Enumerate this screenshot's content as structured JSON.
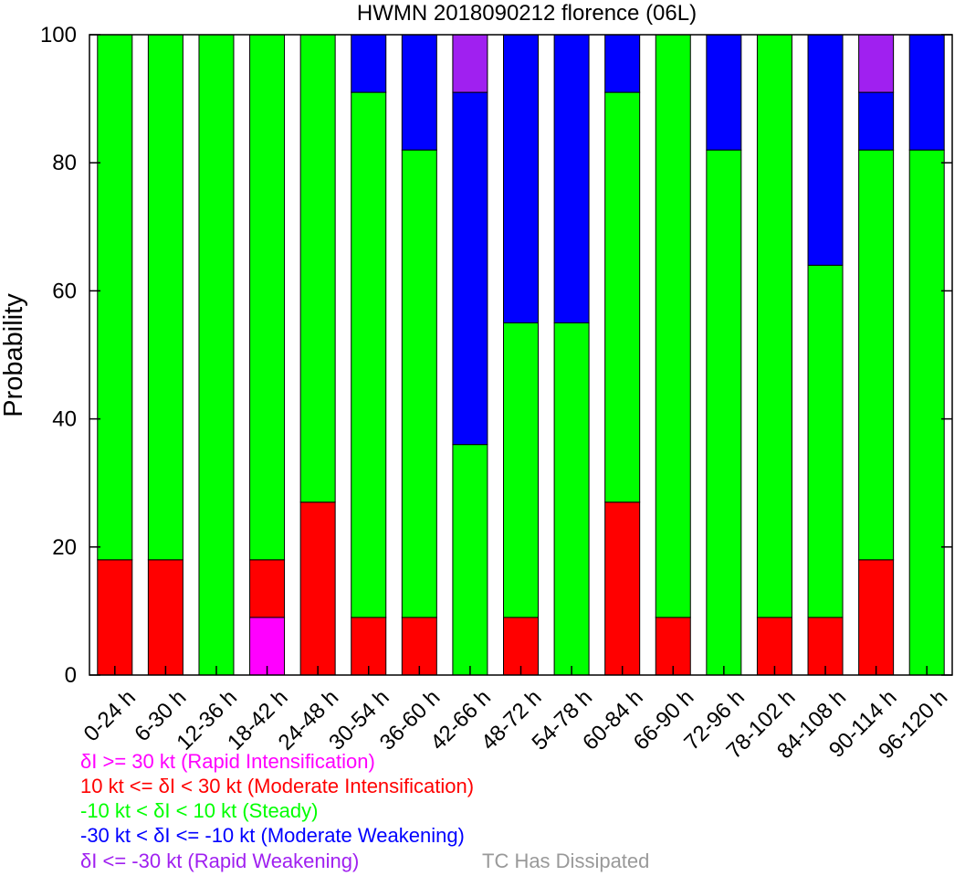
{
  "chart_data": {
    "type": "bar",
    "stacked": true,
    "title": "HWMN 2018090212 florence (06L)",
    "ylabel": "Probability",
    "xlabel": "",
    "ylim": [
      0,
      100
    ],
    "yticks": [
      0,
      20,
      40,
      60,
      80,
      100
    ],
    "grid": false,
    "categories": [
      "0-24 h",
      "6-30 h",
      "12-36 h",
      "18-42 h",
      "24-48 h",
      "30-54 h",
      "36-60 h",
      "42-66 h",
      "48-72 h",
      "54-78 h",
      "60-84 h",
      "66-90 h",
      "72-96 h",
      "78-102 h",
      "84-108 h",
      "90-114 h",
      "96-120 h"
    ],
    "series": [
      {
        "key": "ri",
        "color": "#ff00ff",
        "values": [
          0,
          0,
          0,
          9,
          0,
          0,
          0,
          0,
          0,
          0,
          0,
          0,
          0,
          0,
          0,
          0,
          0
        ]
      },
      {
        "key": "mi",
        "color": "#ff0000",
        "values": [
          18,
          18,
          0,
          9,
          27,
          9,
          9,
          0,
          9,
          0,
          27,
          9,
          0,
          9,
          9,
          18,
          0
        ]
      },
      {
        "key": "steady",
        "color": "#00ff00",
        "values": [
          82,
          82,
          100,
          82,
          73,
          82,
          73,
          36,
          46,
          55,
          64,
          91,
          82,
          91,
          55,
          64,
          82
        ]
      },
      {
        "key": "mw",
        "color": "#0000ff",
        "values": [
          0,
          0,
          0,
          0,
          0,
          9,
          18,
          55,
          45,
          45,
          9,
          0,
          18,
          0,
          36,
          9,
          18
        ]
      },
      {
        "key": "rw",
        "color": "#a020f0",
        "values": [
          0,
          0,
          0,
          0,
          0,
          0,
          0,
          9,
          0,
          0,
          0,
          0,
          0,
          0,
          0,
          9,
          0
        ]
      }
    ]
  },
  "legend": [
    {
      "text": "δI >= 30 kt (Rapid Intensification)",
      "color": "#ff00ff"
    },
    {
      "text": "10 kt <= δI < 30 kt (Moderate Intensification)",
      "color": "#ff0000"
    },
    {
      "text": "-10 kt < δI < 10 kt (Steady)",
      "color": "#00ff00"
    },
    {
      "text": "-30 kt < δI <= -10 kt (Moderate Weakening)",
      "color": "#0000ff"
    },
    {
      "text": "δI <= -30 kt (Rapid Weakening)",
      "color": "#a020f0"
    }
  ],
  "dissipated": {
    "text": "TC Has Dissipated",
    "color": "#999999"
  }
}
